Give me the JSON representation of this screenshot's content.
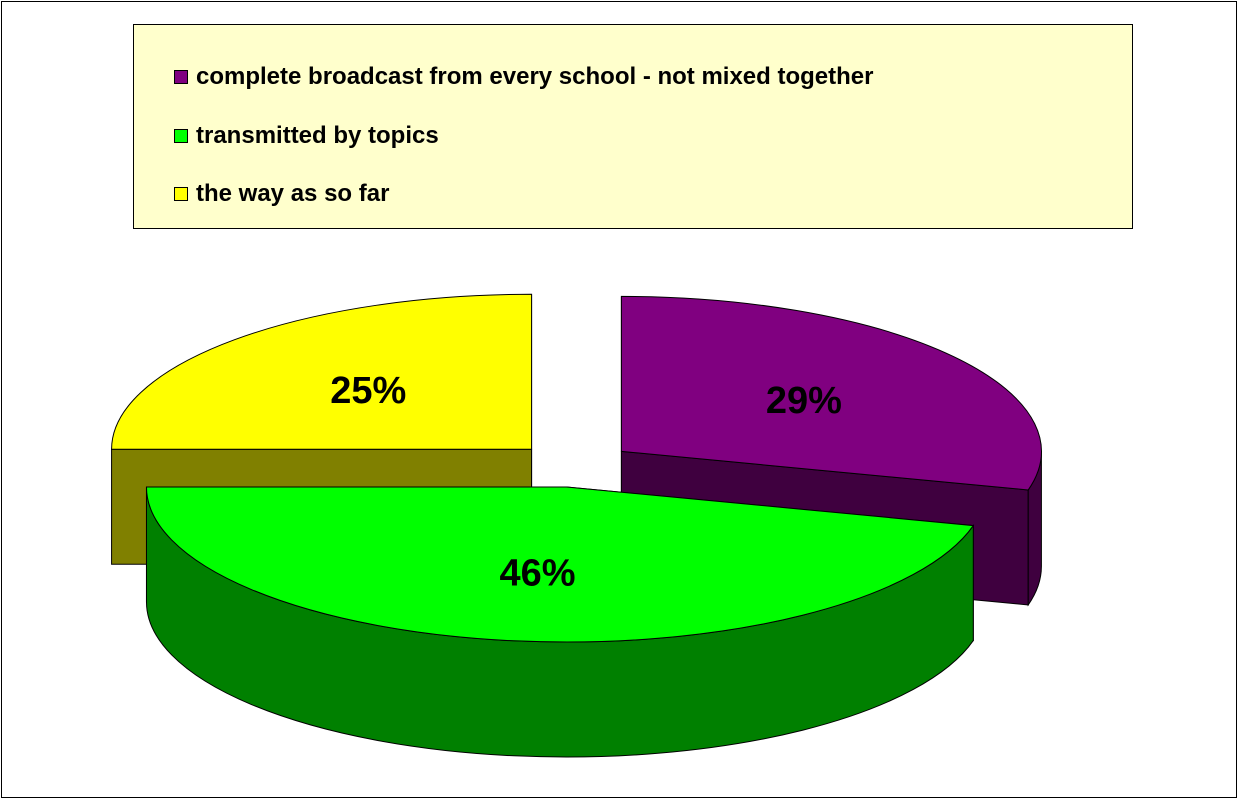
{
  "chart_data": {
    "type": "pie",
    "title": "",
    "legend_position": "top",
    "slices": [
      {
        "label": "complete broadcast from every school - not mixed together",
        "value": 29,
        "value_label": "29%",
        "color": "#800080",
        "side_color": "#3f003f"
      },
      {
        "label": "transmitted by topics",
        "value": 46,
        "value_label": "46%",
        "color": "#00ff00",
        "side_color": "#008000"
      },
      {
        "label": "the way as so far",
        "value": 25,
        "value_label": "25%",
        "color": "#ffff00",
        "side_color": "#808000"
      }
    ]
  }
}
